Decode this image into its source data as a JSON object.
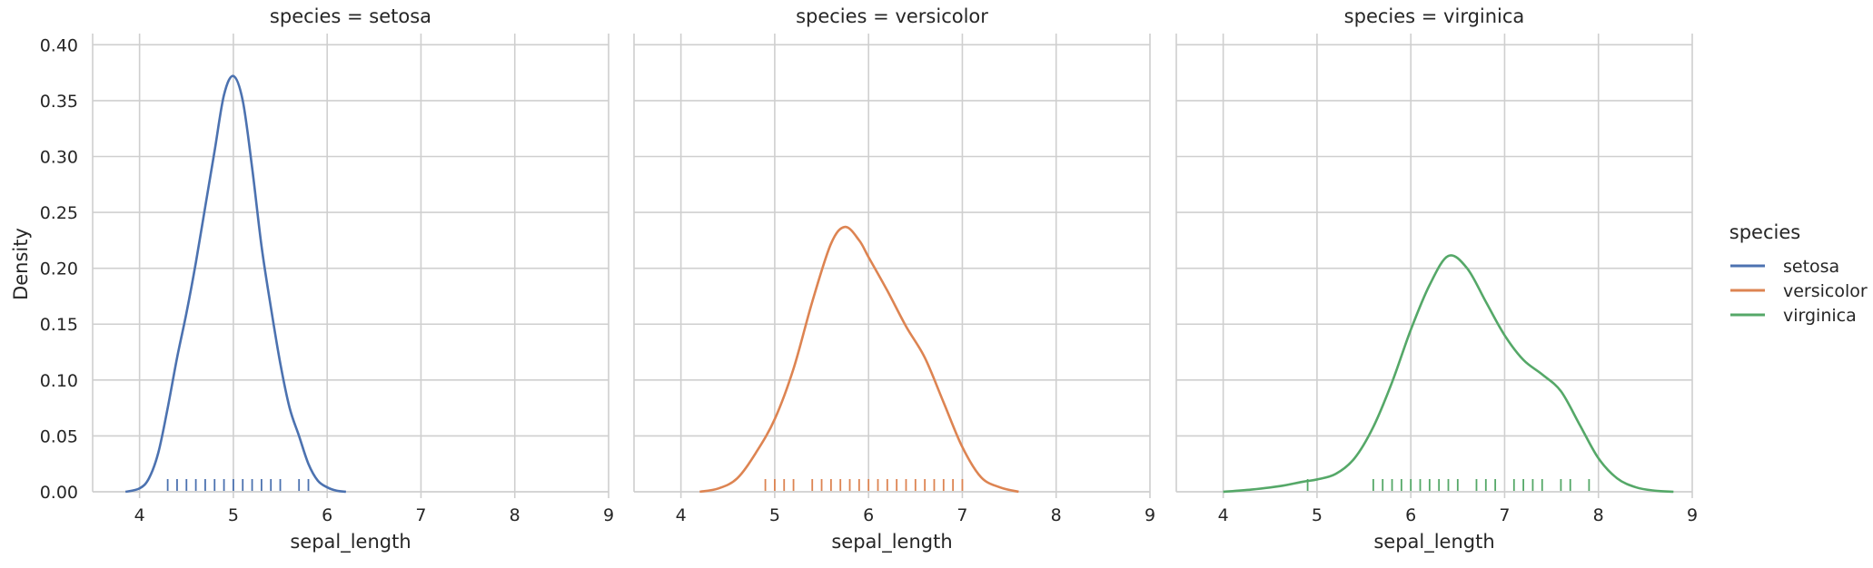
{
  "chart_data": {
    "type": "line",
    "kind": "kde facet grid with rug",
    "ylabel": "Density",
    "xlabel": "sepal_length",
    "xlim": [
      3.5,
      9
    ],
    "ylim": [
      0,
      0.41
    ],
    "xticks": [
      4,
      5,
      6,
      7,
      8,
      9
    ],
    "yticks": [
      "0.00",
      "0.05",
      "0.10",
      "0.15",
      "0.20",
      "0.25",
      "0.30",
      "0.35",
      "0.40"
    ],
    "grid": true,
    "legend": {
      "title": "species",
      "placement": "right",
      "entries": [
        "setosa",
        "versicolor",
        "virginica"
      ]
    },
    "facets": [
      {
        "title": "species = setosa",
        "series": "setosa",
        "color": "#4c72b0",
        "kde": [
          [
            3.85,
            0.0
          ],
          [
            4.0,
            0.003
          ],
          [
            4.1,
            0.012
          ],
          [
            4.2,
            0.035
          ],
          [
            4.3,
            0.075
          ],
          [
            4.4,
            0.12
          ],
          [
            4.5,
            0.16
          ],
          [
            4.6,
            0.205
          ],
          [
            4.7,
            0.255
          ],
          [
            4.8,
            0.305
          ],
          [
            4.9,
            0.355
          ],
          [
            5.0,
            0.372
          ],
          [
            5.1,
            0.35
          ],
          [
            5.2,
            0.29
          ],
          [
            5.3,
            0.22
          ],
          [
            5.4,
            0.165
          ],
          [
            5.5,
            0.115
          ],
          [
            5.6,
            0.075
          ],
          [
            5.7,
            0.05
          ],
          [
            5.8,
            0.025
          ],
          [
            5.9,
            0.01
          ],
          [
            6.0,
            0.004
          ],
          [
            6.1,
            0.001
          ],
          [
            6.2,
            0.0
          ]
        ],
        "rug": [
          4.3,
          4.4,
          4.5,
          4.6,
          4.7,
          4.8,
          4.9,
          5.0,
          5.1,
          5.2,
          5.3,
          5.4,
          5.5,
          5.7,
          5.8
        ]
      },
      {
        "title": "species = versicolor",
        "series": "versicolor",
        "color": "#dd8452",
        "kde": [
          [
            4.2,
            0.0
          ],
          [
            4.4,
            0.003
          ],
          [
            4.6,
            0.012
          ],
          [
            4.8,
            0.035
          ],
          [
            5.0,
            0.065
          ],
          [
            5.2,
            0.11
          ],
          [
            5.4,
            0.17
          ],
          [
            5.6,
            0.222
          ],
          [
            5.75,
            0.237
          ],
          [
            5.9,
            0.225
          ],
          [
            6.0,
            0.21
          ],
          [
            6.2,
            0.18
          ],
          [
            6.4,
            0.148
          ],
          [
            6.6,
            0.12
          ],
          [
            6.8,
            0.08
          ],
          [
            7.0,
            0.04
          ],
          [
            7.2,
            0.013
          ],
          [
            7.4,
            0.004
          ],
          [
            7.6,
            0.0
          ]
        ],
        "rug": [
          4.9,
          5.0,
          5.1,
          5.2,
          5.4,
          5.5,
          5.6,
          5.7,
          5.8,
          5.9,
          6.0,
          6.1,
          6.2,
          6.3,
          6.4,
          6.5,
          6.6,
          6.7,
          6.8,
          6.9,
          7.0
        ]
      },
      {
        "title": "species = virginica",
        "series": "virginica",
        "color": "#55a868",
        "kde": [
          [
            4.0,
            0.0
          ],
          [
            4.3,
            0.002
          ],
          [
            4.6,
            0.005
          ],
          [
            4.85,
            0.009
          ],
          [
            5.0,
            0.011
          ],
          [
            5.2,
            0.016
          ],
          [
            5.4,
            0.03
          ],
          [
            5.6,
            0.058
          ],
          [
            5.8,
            0.098
          ],
          [
            6.0,
            0.145
          ],
          [
            6.2,
            0.185
          ],
          [
            6.4,
            0.211
          ],
          [
            6.6,
            0.2
          ],
          [
            6.8,
            0.17
          ],
          [
            7.0,
            0.14
          ],
          [
            7.2,
            0.118
          ],
          [
            7.4,
            0.105
          ],
          [
            7.6,
            0.09
          ],
          [
            7.8,
            0.06
          ],
          [
            8.0,
            0.03
          ],
          [
            8.2,
            0.012
          ],
          [
            8.4,
            0.004
          ],
          [
            8.6,
            0.001
          ],
          [
            8.8,
            0.0
          ]
        ],
        "rug": [
          4.9,
          5.6,
          5.7,
          5.8,
          5.9,
          6.0,
          6.1,
          6.2,
          6.3,
          6.4,
          6.5,
          6.7,
          6.8,
          6.9,
          7.1,
          7.2,
          7.3,
          7.4,
          7.6,
          7.7,
          7.9
        ]
      }
    ]
  }
}
